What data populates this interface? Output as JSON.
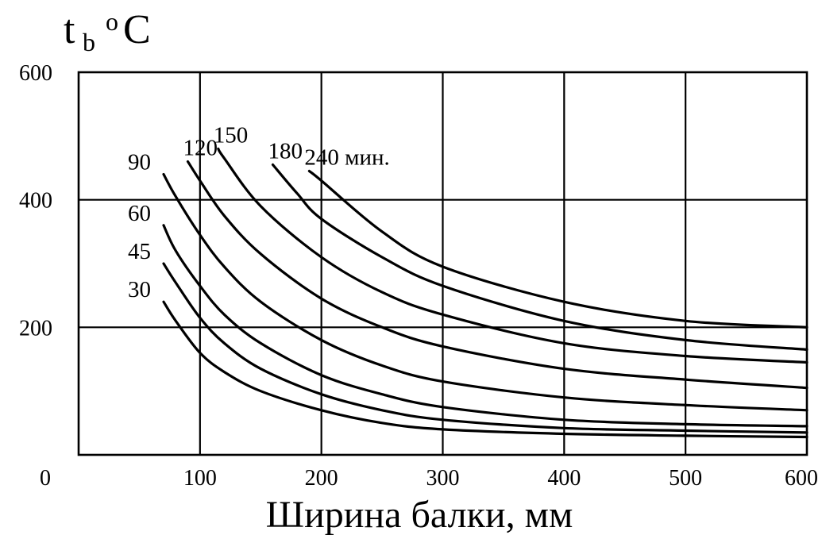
{
  "chart_data": {
    "type": "line",
    "ylabel": {
      "main": "t",
      "sub": "b",
      "unit": "o",
      "tail": "C"
    },
    "xlabel": "Ширина балки, мм",
    "xlim": [
      0,
      600
    ],
    "ylim": [
      0,
      600
    ],
    "origin_label": "0",
    "x_ticks": [
      "100",
      "200",
      "300",
      "400",
      "500",
      "600"
    ],
    "y_ticks": [
      "200",
      "400",
      "600"
    ],
    "grid": true,
    "series": [
      {
        "name": "30",
        "x": [
          70,
          80,
          100,
          120,
          150,
          200,
          250,
          300,
          400,
          500,
          600
        ],
        "y": [
          240,
          210,
          160,
          130,
          100,
          70,
          50,
          40,
          33,
          30,
          28
        ]
      },
      {
        "name": "45",
        "x": [
          70,
          80,
          100,
          120,
          150,
          200,
          250,
          300,
          400,
          500,
          600
        ],
        "y": [
          300,
          270,
          215,
          175,
          135,
          95,
          70,
          55,
          42,
          38,
          35
        ]
      },
      {
        "name": "60",
        "x": [
          70,
          80,
          100,
          120,
          150,
          200,
          250,
          300,
          400,
          500,
          600
        ],
        "y": [
          360,
          320,
          265,
          220,
          175,
          125,
          95,
          75,
          55,
          48,
          45
        ]
      },
      {
        "name": "90",
        "x": [
          70,
          80,
          100,
          120,
          150,
          200,
          250,
          300,
          400,
          500,
          600
        ],
        "y": [
          440,
          405,
          345,
          295,
          240,
          180,
          140,
          115,
          90,
          78,
          70
        ]
      },
      {
        "name": "120",
        "x": [
          90,
          100,
          120,
          150,
          200,
          250,
          300,
          400,
          500,
          600
        ],
        "y": [
          460,
          430,
          375,
          315,
          245,
          200,
          170,
          135,
          118,
          105
        ]
      },
      {
        "name": "150",
        "x": [
          115,
          120,
          150,
          200,
          250,
          300,
          400,
          500,
          600
        ],
        "y": [
          480,
          465,
          390,
          310,
          255,
          220,
          175,
          155,
          145
        ]
      },
      {
        "name": "180",
        "x": [
          160,
          180,
          200,
          250,
          300,
          400,
          500,
          600
        ],
        "y": [
          455,
          410,
          370,
          310,
          265,
          210,
          180,
          165
        ]
      },
      {
        "name": "240",
        "x": [
          190,
          200,
          250,
          300,
          400,
          500,
          600
        ],
        "y": [
          445,
          430,
          350,
          295,
          240,
          210,
          200
        ]
      }
    ],
    "curve_labels": [
      "30",
      "45",
      "60",
      "90",
      "120",
      "150",
      "180",
      "240 мин."
    ]
  }
}
